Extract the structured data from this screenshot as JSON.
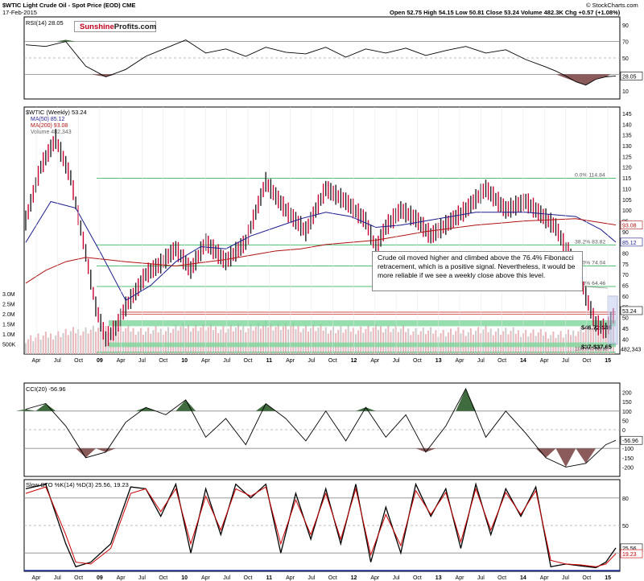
{
  "header": {
    "title": "$WTIC Light Crude Oil - Spot Price (EOD) CME",
    "date": "17-Feb-2015",
    "ohlc": "Open 52.75  High 54.15  Low 50.81  Close 53.24  Volume 482.3K  Chg +0.57 (+1.08%)",
    "copyright": "© StockCharts.com"
  },
  "logo": {
    "part1": "Sunshine",
    "part2": "Profits.com"
  },
  "annotation": {
    "text": "Crude oil moved higher and climbed above the 76.4% Fibonacci retracement, which is a positive signal. Nevertheless, it would be more reliable if we see a weekly close above this level."
  },
  "chart_data": [
    {
      "type": "line",
      "title": "RSI(14) 28.05",
      "ylim": [
        0,
        100
      ],
      "y_ticks": [
        10,
        30,
        50,
        70,
        90
      ],
      "reference_lines": [
        30,
        70
      ],
      "last_value_label": "28.05",
      "x": [
        0,
        8,
        16,
        24,
        32,
        40,
        48,
        56,
        64,
        72,
        80,
        88,
        96,
        104,
        112,
        120,
        128,
        136,
        144,
        152,
        160,
        168,
        176,
        184,
        192,
        200,
        208,
        212,
        216,
        220,
        224,
        228,
        232,
        236
      ],
      "values": [
        66,
        64,
        70,
        40,
        27,
        36,
        52,
        62,
        72,
        56,
        61,
        52,
        63,
        57,
        55,
        63,
        51,
        61,
        56,
        62,
        53,
        59,
        64,
        56,
        60,
        48,
        39,
        34,
        28,
        21,
        17,
        24,
        27,
        28
      ]
    },
    {
      "type": "line",
      "title": "$WTIC (Weekly) 53.24",
      "legend": [
        "MA(50) 85.12",
        "MA(200) 93.08",
        "Volume 482,343"
      ],
      "series": [
        {
          "name": "$WTIC (Weekly)",
          "color": "#cc0033",
          "x": [
            0,
            6,
            12,
            18,
            24,
            28,
            32,
            36,
            40,
            44,
            48,
            54,
            60,
            66,
            72,
            80,
            88,
            96,
            104,
            112,
            120,
            128,
            136,
            140,
            144,
            150,
            156,
            162,
            168,
            176,
            184,
            192,
            200,
            206,
            212,
            216,
            220,
            224,
            228,
            232,
            236
          ],
          "values": [
            95,
            120,
            133,
            115,
            80,
            55,
            40,
            45,
            55,
            62,
            70,
            75,
            82,
            72,
            85,
            76,
            85,
            113,
            100,
            90,
            110,
            104,
            95,
            82,
            92,
            100,
            96,
            88,
            93,
            100,
            110,
            100,
            104,
            98,
            92,
            82,
            75,
            60,
            47,
            44,
            53
          ]
        },
        {
          "name": "MA(50) 85.12",
          "color": "#1a1a8c",
          "x": [
            0,
            10,
            20,
            30,
            40,
            50,
            60,
            70,
            80,
            90,
            100,
            110,
            120,
            130,
            140,
            150,
            160,
            170,
            180,
            190,
            200,
            210,
            220,
            230,
            236
          ],
          "values": [
            85,
            104,
            101,
            80,
            58,
            65,
            76,
            83,
            82,
            88,
            92,
            96,
            99,
            97,
            92,
            93,
            95,
            97,
            99,
            99,
            99,
            98,
            97,
            91,
            85.12
          ]
        },
        {
          "name": "MA(200) 93.08",
          "color": "#b01010",
          "x": [
            0,
            8,
            16,
            24,
            32,
            40,
            60,
            80,
            100,
            110,
            120,
            140,
            160,
            180,
            200,
            220,
            236
          ],
          "values": [
            66,
            72,
            76,
            78,
            77,
            76,
            74,
            77,
            81,
            82,
            84,
            86,
            90,
            93,
            95,
            96,
            93.08
          ]
        }
      ],
      "volume": {
        "x": [
          0,
          8,
          16,
          24,
          32,
          40,
          48,
          56,
          64,
          72,
          80,
          88,
          96,
          104,
          112,
          120,
          128,
          136,
          144,
          152,
          160,
          168,
          176,
          184,
          192,
          200,
          208,
          216,
          224,
          232
        ],
        "values": [
          900000,
          1100000,
          1400000,
          1600000,
          1800000,
          1700000,
          1500000,
          1600000,
          1900000,
          1800000,
          1700000,
          1800000,
          2000000,
          1900000,
          1800000,
          1700000,
          1600000,
          1700000,
          1800000,
          1600000,
          1500000,
          1400000,
          1500000,
          1600000,
          1500000,
          1400000,
          1300000,
          1200000,
          1800000,
          2200000
        ],
        "y_ticks": [
          "500K",
          "1.0M",
          "1.5M",
          "2.0M",
          "2.5M",
          "3.0M"
        ]
      },
      "y_ticks": [
        40,
        45,
        50,
        55,
        60,
        65,
        70,
        75,
        80,
        85,
        90,
        95,
        100,
        105,
        110,
        115,
        120,
        125,
        130,
        135,
        140,
        145
      ],
      "fibonacci": [
        {
          "label": "0.0% 114.84",
          "value": 114.84
        },
        {
          "label": "38.2% 83.82",
          "value": 83.82
        },
        {
          "label": "50.0% 74.04",
          "value": 74.04
        },
        {
          "label": "61.8% 64.46",
          "value": 64.46
        },
        {
          "label": "100.0% 33.85",
          "value": 33.85
        }
      ],
      "support_zones": [
        {
          "label": "$46.72-$48",
          "low": 46.72,
          "high": 48
        },
        {
          "label": "$37-$37.65",
          "low": 37,
          "high": 37.65
        }
      ],
      "price_labels": [
        "93.08",
        "85.12",
        "53.24",
        "482,343"
      ],
      "x_labels": [
        "Apr",
        "Jul",
        "Oct",
        "09",
        "Apr",
        "Jul",
        "Oct",
        "10",
        "Apr",
        "Jul",
        "Oct",
        "11",
        "Apr",
        "Jul",
        "Oct",
        "12",
        "Apr",
        "Jul",
        "Oct",
        "13",
        "Apr",
        "Jul",
        "Oct",
        "14",
        "Apr",
        "Jul",
        "Oct",
        "15"
      ]
    },
    {
      "type": "line",
      "title": "CCI(20) -56.96",
      "ylim": [
        -250,
        250
      ],
      "y_ticks": [
        -200,
        -150,
        -100,
        -50,
        0,
        50,
        100,
        150,
        200
      ],
      "reference_lines": [
        -100,
        0,
        100
      ],
      "last_value_label": "-56.96",
      "x": [
        0,
        8,
        16,
        24,
        32,
        40,
        48,
        56,
        64,
        72,
        80,
        88,
        96,
        104,
        112,
        120,
        128,
        136,
        144,
        152,
        160,
        168,
        176,
        184,
        192,
        200,
        208,
        216,
        224,
        232,
        236
      ],
      "values": [
        110,
        140,
        20,
        -150,
        -120,
        40,
        120,
        80,
        160,
        -40,
        60,
        -80,
        140,
        60,
        -60,
        100,
        -60,
        120,
        -40,
        80,
        -120,
        20,
        220,
        -40,
        100,
        -20,
        -150,
        -200,
        -180,
        -80,
        -56.96
      ]
    },
    {
      "type": "line",
      "title": "Slow STO %K(14) %D(3) 25.56, 19.23",
      "ylim": [
        0,
        100
      ],
      "y_ticks": [
        20,
        50,
        80
      ],
      "reference_lines": [
        20,
        80
      ],
      "last_value_labels": [
        "25.56",
        "19.23"
      ],
      "series": [
        {
          "name": "%K(14)",
          "color": "#000000",
          "x": [
            0,
            8,
            16,
            20,
            26,
            34,
            42,
            48,
            54,
            60,
            66,
            72,
            78,
            84,
            90,
            96,
            102,
            108,
            114,
            120,
            126,
            132,
            138,
            144,
            150,
            156,
            162,
            168,
            174,
            180,
            186,
            192,
            198,
            204,
            210,
            216,
            222,
            228,
            232,
            236
          ],
          "values": [
            90,
            95,
            30,
            5,
            10,
            30,
            92,
            90,
            60,
            95,
            20,
            90,
            40,
            95,
            80,
            95,
            20,
            85,
            35,
            90,
            30,
            95,
            10,
            70,
            20,
            95,
            60,
            90,
            25,
            95,
            40,
            90,
            60,
            92,
            5,
            8,
            6,
            4,
            10,
            25.56
          ]
        },
        {
          "name": "%D(3)",
          "color": "#cc0000",
          "x": [
            0,
            8,
            16,
            20,
            26,
            34,
            42,
            48,
            54,
            60,
            66,
            72,
            78,
            84,
            90,
            96,
            102,
            108,
            114,
            120,
            126,
            132,
            138,
            144,
            150,
            156,
            162,
            168,
            174,
            180,
            186,
            192,
            198,
            204,
            210,
            216,
            222,
            228,
            232,
            236
          ],
          "values": [
            85,
            92,
            40,
            10,
            8,
            25,
            85,
            90,
            65,
            90,
            30,
            82,
            45,
            90,
            82,
            92,
            30,
            78,
            40,
            85,
            35,
            90,
            18,
            62,
            28,
            88,
            62,
            86,
            32,
            90,
            45,
            86,
            62,
            88,
            12,
            8,
            7,
            5,
            8,
            19.23
          ]
        }
      ],
      "x_labels": [
        "Apr",
        "Jul",
        "Oct",
        "09",
        "Apr",
        "Jul",
        "Oct",
        "10",
        "Apr",
        "Jul",
        "Oct",
        "11",
        "Apr",
        "Jul",
        "Oct",
        "12",
        "Apr",
        "Jul",
        "Oct",
        "13",
        "Apr",
        "Jul",
        "Oct",
        "14",
        "Apr",
        "Jul",
        "Oct",
        "15"
      ]
    }
  ]
}
